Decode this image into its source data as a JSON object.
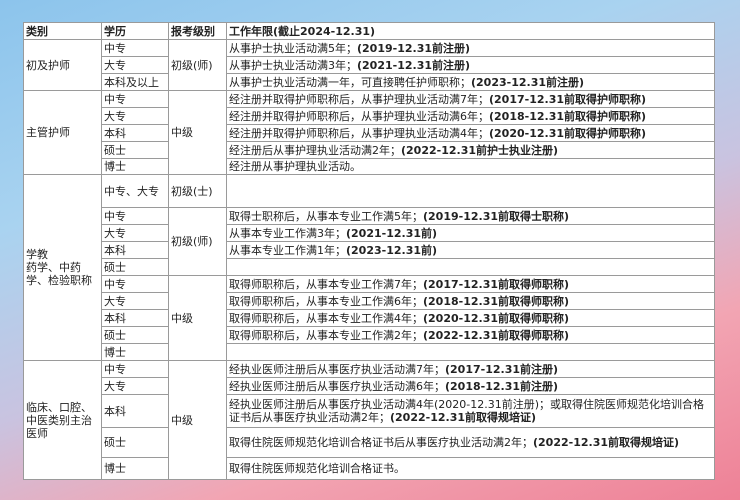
{
  "header": {
    "category": "类别",
    "education": "学历",
    "level": "报考级别",
    "requirement": "工作年限(截止2024-12.31)"
  },
  "sections": [
    {
      "category": "初及护师",
      "levels": [
        {
          "level": "初级(师)",
          "rows": [
            {
              "edu": "中专",
              "req": "从事护士执业活动满5年；",
              "note": "(2019-12.31前注册)"
            },
            {
              "edu": "大专",
              "req": "从事护士执业活动满3年；",
              "note": "(2021-12.31前注册)"
            },
            {
              "edu": "本科及以上",
              "req": "从事护士执业活动满一年，可直接聘任护师职称；",
              "note": "(2023-12.31前注册)"
            }
          ]
        }
      ]
    },
    {
      "category": "主管护师",
      "levels": [
        {
          "level": "中级",
          "rows": [
            {
              "edu": "中专",
              "req": "经注册并取得护师职称后，从事护理执业活动满7年；",
              "note": "(2017-12.31前取得护师职称)"
            },
            {
              "edu": "大专",
              "req": "经注册并取得护师职称后，从事护理执业活动满6年；",
              "note": "(2018-12.31前取得护师职称)"
            },
            {
              "edu": "本科",
              "req": "经注册并取得护师职称后，从事护理执业活动满4年；",
              "note": "(2020-12.31前取得护师职称)"
            },
            {
              "edu": "硕士",
              "req": "经注册后从事护理执业活动满2年；",
              "note": "(2022-12.31前护士执业注册)"
            },
            {
              "edu": "博士",
              "req": "经注册从事护理执业活动。",
              "note": ""
            }
          ]
        }
      ]
    },
    {
      "category": "学教\n药学、中药学、检验职称",
      "levels": [
        {
          "level": "初级(士)",
          "rows": [
            {
              "edu": "中专、大专",
              "req": "",
              "note": ""
            }
          ]
        },
        {
          "level": "初级(师)",
          "rows": [
            {
              "edu": "中专",
              "req": "取得士职称后，从事本专业工作满5年；",
              "note": "(2019-12.31前取得士职称)"
            },
            {
              "edu": "大专",
              "req": "从事本专业工作满3年；",
              "note": "(2021-12.31前)"
            },
            {
              "edu": "本科",
              "req": "从事本专业工作满1年；",
              "note": "(2023-12.31前)"
            },
            {
              "edu": "硕士",
              "req": "",
              "note": ""
            }
          ]
        },
        {
          "level": "中级",
          "rows": [
            {
              "edu": "中专",
              "req": "取得师职称后，从事本专业工作满7年；",
              "note": "(2017-12.31前取得师职称)"
            },
            {
              "edu": "大专",
              "req": "取得师职称后，从事本专业工作满6年；",
              "note": "(2018-12.31前取得师职称)"
            },
            {
              "edu": "本科",
              "req": "取得师职称后，从事本专业工作满4年；",
              "note": "(2020-12.31前取得师职称)"
            },
            {
              "edu": "硕士",
              "req": "取得师职称后，从事本专业工作满2年；",
              "note": "(2022-12.31前取得师职称)"
            },
            {
              "edu": "博士",
              "req": "",
              "note": ""
            }
          ]
        }
      ]
    },
    {
      "category": "临床、口腔、中医类别主治医师",
      "levels": [
        {
          "level": "中级",
          "rows": [
            {
              "edu": "中专",
              "req": "经执业医师注册后从事医疗执业活动满7年；",
              "note": "(2017-12.31前注册)"
            },
            {
              "edu": "大专",
              "req": "经执业医师注册后从事医疗执业活动满6年；",
              "note": "(2018-12.31前注册)"
            },
            {
              "edu": "本科",
              "req": "经执业医师注册后从事医疗执业活动满4年(2020-12.31前注册)；或取得住院医师规范化培训合格证书后从事医疗执业活动满2年；",
              "note": "(2022-12.31前取得规培证)"
            },
            {
              "edu": "硕士",
              "req": "取得住院医师规范化培训合格证书后从事医疗执业活动满2年；",
              "note": "(2022-12.31前取得规培证)"
            },
            {
              "edu": "博士",
              "req": "取得住院医师规范化培训合格证书。",
              "note": ""
            }
          ]
        }
      ]
    }
  ]
}
